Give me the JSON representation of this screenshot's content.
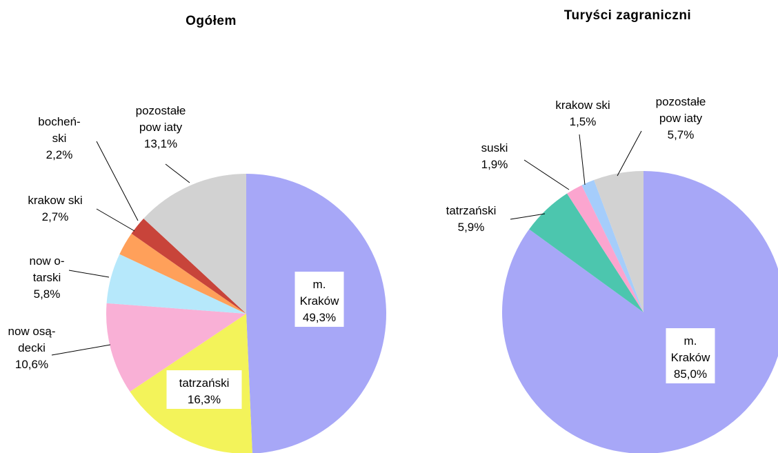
{
  "chart_data": [
    {
      "type": "pie",
      "title": "Ogółem",
      "categories": [
        "m.\nKraków",
        "tatrzański",
        "now osą-\ndecki",
        "now o-\ntarski",
        "krakow ski",
        "bocheń-\nski",
        "pozostałe\npow iaty"
      ],
      "values": [
        49.3,
        16.3,
        10.6,
        5.8,
        2.7,
        2.2,
        13.1
      ],
      "value_labels": [
        "49,3%",
        "16,3%",
        "10,6%",
        "5,8%",
        "2,7%",
        "2,2%",
        "13,1%"
      ],
      "colors": [
        "#a7a7f7",
        "#f3f35a",
        "#f9b0d6",
        "#b6e8fb",
        "#ffa05a",
        "#c8443a",
        "#d2d2d2"
      ]
    },
    {
      "type": "pie",
      "title": "Turyści zagraniczni",
      "categories": [
        "m.\nKraków",
        "tatrzański",
        "suski",
        "krakow ski",
        "pozostałe\npow iaty"
      ],
      "values": [
        85.0,
        5.9,
        1.9,
        1.5,
        5.7
      ],
      "value_labels": [
        "85,0%",
        "5,9%",
        "1,9%",
        "1,5%",
        "5,7%"
      ],
      "colors": [
        "#a7a7f7",
        "#4cc6ae",
        "#fba5cf",
        "#a5cdfb",
        "#d2d2d2"
      ]
    }
  ]
}
